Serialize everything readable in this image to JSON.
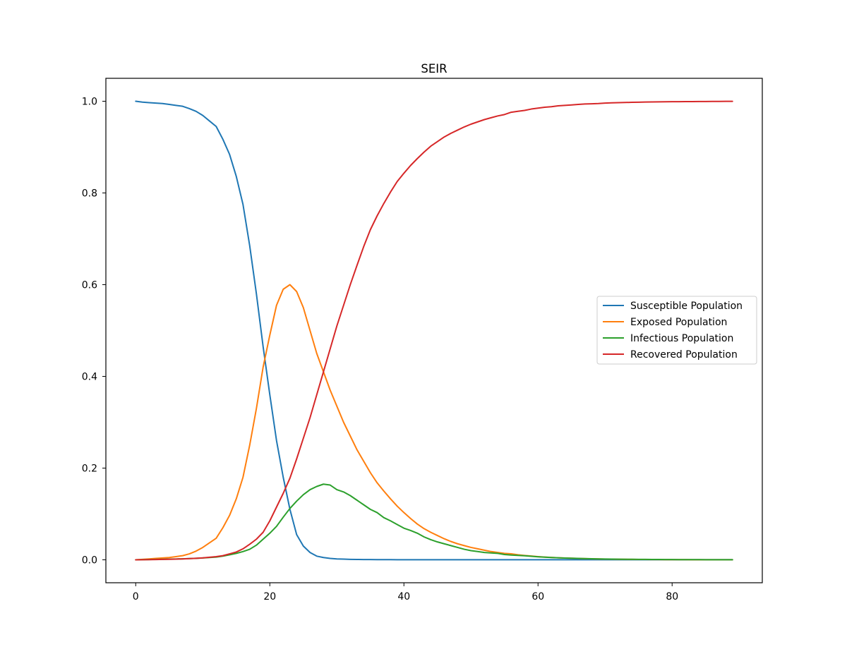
{
  "chart_data": {
    "type": "line",
    "title": "SEIR",
    "xlabel": "",
    "ylabel": "",
    "xlim": [
      -4.45,
      93.45
    ],
    "ylim": [
      -0.05,
      1.05
    ],
    "xticks": [
      0,
      20,
      40,
      60,
      80
    ],
    "yticks": [
      0.0,
      0.2,
      0.4,
      0.6,
      0.8,
      1.0
    ],
    "xtick_labels": [
      "0",
      "20",
      "40",
      "60",
      "80"
    ],
    "ytick_labels": [
      "0.0",
      "0.2",
      "0.4",
      "0.6",
      "0.8",
      "1.0"
    ],
    "grid": false,
    "legend_position": "center-right",
    "x": [
      0,
      1,
      2,
      3,
      4,
      5,
      6,
      7,
      8,
      9,
      10,
      11,
      12,
      13,
      14,
      15,
      16,
      17,
      18,
      19,
      20,
      21,
      22,
      23,
      24,
      25,
      26,
      27,
      28,
      29,
      30,
      31,
      32,
      33,
      34,
      35,
      36,
      37,
      38,
      39,
      40,
      41,
      42,
      43,
      44,
      45,
      46,
      47,
      48,
      49,
      50,
      51,
      52,
      53,
      54,
      55,
      56,
      57,
      58,
      59,
      60,
      61,
      62,
      63,
      64,
      65,
      66,
      67,
      68,
      69,
      70,
      71,
      72,
      73,
      74,
      75,
      76,
      77,
      78,
      79,
      80,
      81,
      82,
      83,
      84,
      85,
      86,
      87,
      88,
      89
    ],
    "series": [
      {
        "name": "Susceptible Population",
        "color": "#1f77b4",
        "values": [
          1.0,
          0.998,
          0.997,
          0.996,
          0.995,
          0.993,
          0.991,
          0.989,
          0.984,
          0.978,
          0.969,
          0.957,
          0.945,
          0.917,
          0.884,
          0.836,
          0.775,
          0.685,
          0.58,
          0.465,
          0.36,
          0.26,
          0.18,
          0.11,
          0.055,
          0.03,
          0.016,
          0.008,
          0.005,
          0.003,
          0.002,
          0.0015,
          0.001,
          0.0008,
          0.0006,
          0.0005,
          0.0004,
          0.0003,
          0.0003,
          0.0002,
          0.0002,
          0.0002,
          0.0001,
          0.0001,
          0.0001,
          0.0001,
          0.0001,
          0.0001,
          0.0001,
          0.0001,
          0.0001,
          0.0001,
          0.0001,
          0.0001,
          0.0001,
          0.0001,
          0.0001,
          0.0001,
          0.0001,
          0.0001,
          0.0001,
          0.0001,
          0.0001,
          0.0001,
          0.0001,
          0.0001,
          0.0001,
          0.0001,
          0.0001,
          0.0001,
          0.0001,
          0.0001,
          0.0001,
          0.0001,
          0.0001,
          0.0001,
          0.0001,
          0.0001,
          0.0001,
          0.0001,
          0.0001,
          0.0001,
          0.0001,
          0.0001,
          0.0001,
          0.0001,
          0.0001,
          0.0001,
          0.0001,
          0.0001
        ]
      },
      {
        "name": "Exposed Population",
        "color": "#ff7f0e",
        "values": [
          0.0,
          0.001,
          0.002,
          0.003,
          0.004,
          0.005,
          0.007,
          0.009,
          0.013,
          0.019,
          0.027,
          0.037,
          0.047,
          0.07,
          0.097,
          0.133,
          0.18,
          0.25,
          0.33,
          0.42,
          0.49,
          0.555,
          0.59,
          0.6,
          0.585,
          0.55,
          0.5,
          0.45,
          0.41,
          0.37,
          0.335,
          0.3,
          0.27,
          0.24,
          0.215,
          0.19,
          0.168,
          0.15,
          0.133,
          0.117,
          0.103,
          0.09,
          0.078,
          0.068,
          0.06,
          0.053,
          0.046,
          0.04,
          0.035,
          0.031,
          0.027,
          0.024,
          0.021,
          0.018,
          0.016,
          0.014,
          0.013,
          0.011,
          0.0095,
          0.0082,
          0.007,
          0.006,
          0.0052,
          0.0045,
          0.0039,
          0.0034,
          0.0029,
          0.0025,
          0.0022,
          0.0019,
          0.0016,
          0.0014,
          0.0012,
          0.0011,
          0.0009,
          0.0008,
          0.0007,
          0.0006,
          0.0005,
          0.00045,
          0.0004,
          0.00035,
          0.0003,
          0.00025,
          0.0002,
          0.00018,
          0.00015,
          0.00013,
          0.00011,
          0.0001
        ]
      },
      {
        "name": "Infectious Population",
        "color": "#2ca02c",
        "values": [
          0.0,
          0.0003,
          0.0006,
          0.0009,
          0.0012,
          0.0015,
          0.0018,
          0.0022,
          0.0027,
          0.0033,
          0.004,
          0.005,
          0.006,
          0.008,
          0.011,
          0.014,
          0.018,
          0.023,
          0.032,
          0.045,
          0.058,
          0.073,
          0.093,
          0.112,
          0.128,
          0.142,
          0.153,
          0.16,
          0.165,
          0.163,
          0.153,
          0.148,
          0.14,
          0.13,
          0.12,
          0.11,
          0.103,
          0.092,
          0.085,
          0.077,
          0.069,
          0.064,
          0.058,
          0.05,
          0.044,
          0.039,
          0.035,
          0.031,
          0.027,
          0.023,
          0.02,
          0.018,
          0.016,
          0.015,
          0.014,
          0.0115,
          0.0103,
          0.0096,
          0.0089,
          0.0077,
          0.0066,
          0.0058,
          0.005,
          0.0044,
          0.0039,
          0.0034,
          0.003,
          0.0026,
          0.0023,
          0.002,
          0.0018,
          0.0016,
          0.0014,
          0.0012,
          0.0011,
          0.001,
          0.0009,
          0.0008,
          0.0007,
          0.0006,
          0.0005,
          0.00045,
          0.0004,
          0.00035,
          0.0003,
          0.00026,
          0.00023,
          0.0002,
          0.00018,
          0.00015
        ]
      },
      {
        "name": "Recovered Population",
        "color": "#d62728",
        "values": [
          0.0,
          0.0002,
          0.0004,
          0.0006,
          0.0009,
          0.0012,
          0.0016,
          0.002,
          0.0026,
          0.0033,
          0.0042,
          0.0055,
          0.007,
          0.009,
          0.013,
          0.017,
          0.024,
          0.034,
          0.045,
          0.06,
          0.085,
          0.115,
          0.145,
          0.178,
          0.22,
          0.265,
          0.31,
          0.36,
          0.41,
          0.46,
          0.51,
          0.555,
          0.6,
          0.642,
          0.683,
          0.72,
          0.75,
          0.777,
          0.802,
          0.825,
          0.843,
          0.86,
          0.875,
          0.889,
          0.902,
          0.912,
          0.922,
          0.93,
          0.937,
          0.944,
          0.95,
          0.955,
          0.96,
          0.964,
          0.968,
          0.971,
          0.976,
          0.978,
          0.98,
          0.983,
          0.985,
          0.987,
          0.988,
          0.99,
          0.991,
          0.992,
          0.993,
          0.994,
          0.9945,
          0.995,
          0.996,
          0.9965,
          0.997,
          0.9973,
          0.9976,
          0.9979,
          0.9982,
          0.9984,
          0.9986,
          0.9988,
          0.999,
          0.9991,
          0.9992,
          0.9993,
          0.9994,
          0.9995,
          0.9996,
          0.9997,
          0.9998,
          0.9999
        ]
      }
    ]
  }
}
